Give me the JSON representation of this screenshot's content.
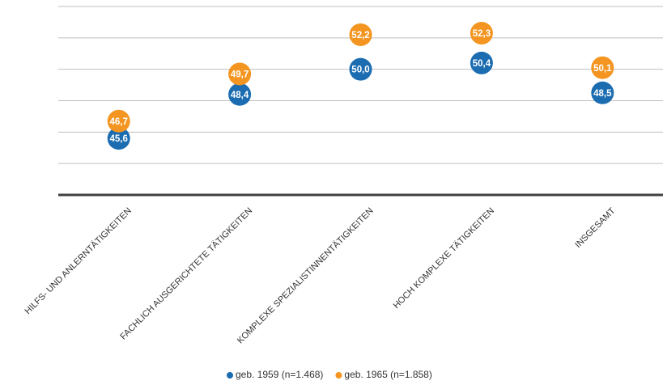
{
  "chart_data": {
    "type": "dot",
    "categories": [
      "HILFS- UND ANLERNTÄTIGKEITEN",
      "FACHLICH AUSGERICHTETE TÄTIGKEITEN",
      "KOMPLEXE SPEZIALISTINNENTÄTIGKEITEN",
      "HOCH KOMPLEXE TÄTIGKEITEN",
      "INSGESAMT"
    ],
    "series": [
      {
        "name": "geb. 1959 (n=1.468)",
        "color": "#1b6cb0",
        "values": [
          45.6,
          48.4,
          50.0,
          50.4,
          48.5
        ],
        "value_labels": [
          "45,6",
          "48,4",
          "50,0",
          "50,4",
          "48,5"
        ]
      },
      {
        "name": "geb. 1965 (n=1.858)",
        "color": "#f39520",
        "values": [
          46.7,
          49.7,
          52.2,
          52.3,
          50.1
        ],
        "value_labels": [
          "46,7",
          "49,7",
          "52,2",
          "52,3",
          "50,1"
        ]
      }
    ],
    "ylim": [
      42,
      54
    ],
    "yticks": [
      42,
      44,
      46,
      48,
      50,
      52,
      54
    ],
    "grid": true
  }
}
